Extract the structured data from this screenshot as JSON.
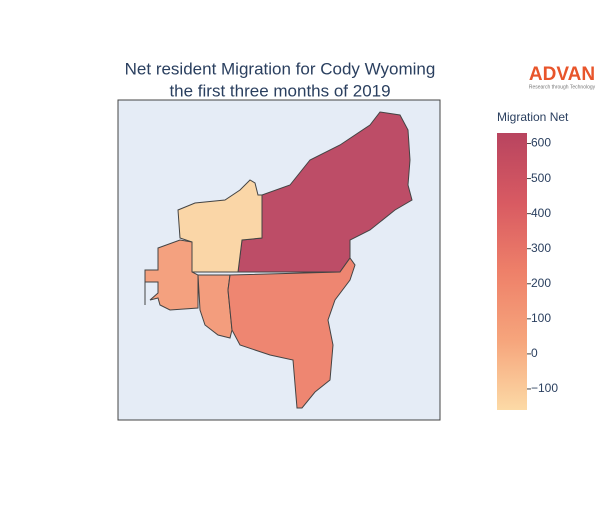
{
  "chart_data": {
    "type": "choropleth",
    "title": [
      "Net resident Migration for Cody Wyoming",
      "the first three months of 2019"
    ],
    "colorbar_title": "Migration Net",
    "values": [
      620,
      -140,
      80,
      100,
      230
    ],
    "colorscale": [
      "#fcdaa6",
      "#f6a57c",
      "#ee8069",
      "#d85a62",
      "#b8445f"
    ],
    "zlim": [
      -160,
      630
    ],
    "zticks": [
      {
        "value": -100,
        "label": "−100"
      },
      0,
      100,
      200,
      300,
      400,
      500,
      600
    ]
  },
  "logo": {
    "name": "ADVAN",
    "tagline": "Research through Technology"
  }
}
